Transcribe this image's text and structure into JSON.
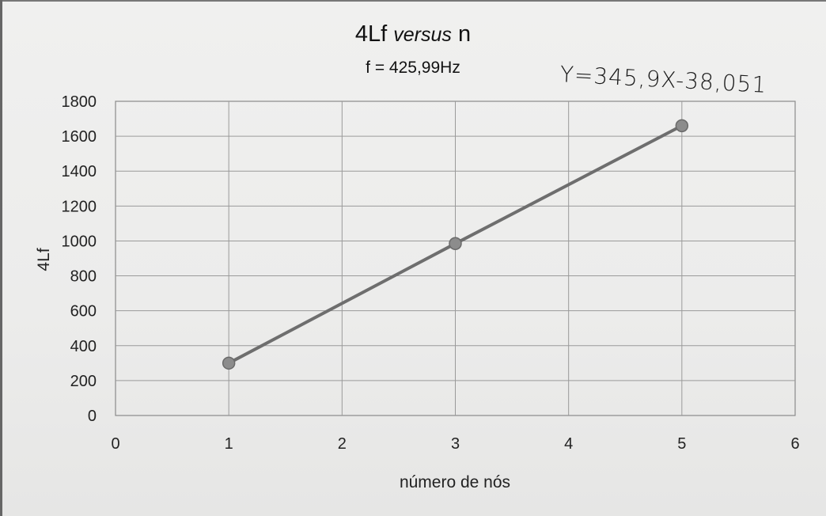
{
  "chart_data": {
    "type": "line",
    "title": "4Lf versus n",
    "title_parts": {
      "main": "4Lf ",
      "italic": "versus",
      "tail": " n"
    },
    "subtitle": "f = 425,99Hz",
    "xlabel": "número de nós",
    "ylabel": "4Lf",
    "xlim": [
      0,
      6
    ],
    "ylim": [
      0,
      1800
    ],
    "xticks": [
      0,
      1,
      2,
      3,
      4,
      5,
      6
    ],
    "yticks": [
      0,
      200,
      400,
      600,
      800,
      1000,
      1200,
      1400,
      1600,
      1800
    ],
    "grid": true,
    "legend": "none",
    "series": [
      {
        "x": [
          1,
          3,
          5
        ],
        "y": [
          300,
          985,
          1660
        ],
        "color": "#6e6e6e"
      }
    ],
    "annotations": [
      {
        "text": "Y=345,9X-38,051",
        "style": "handwritten"
      }
    ]
  }
}
